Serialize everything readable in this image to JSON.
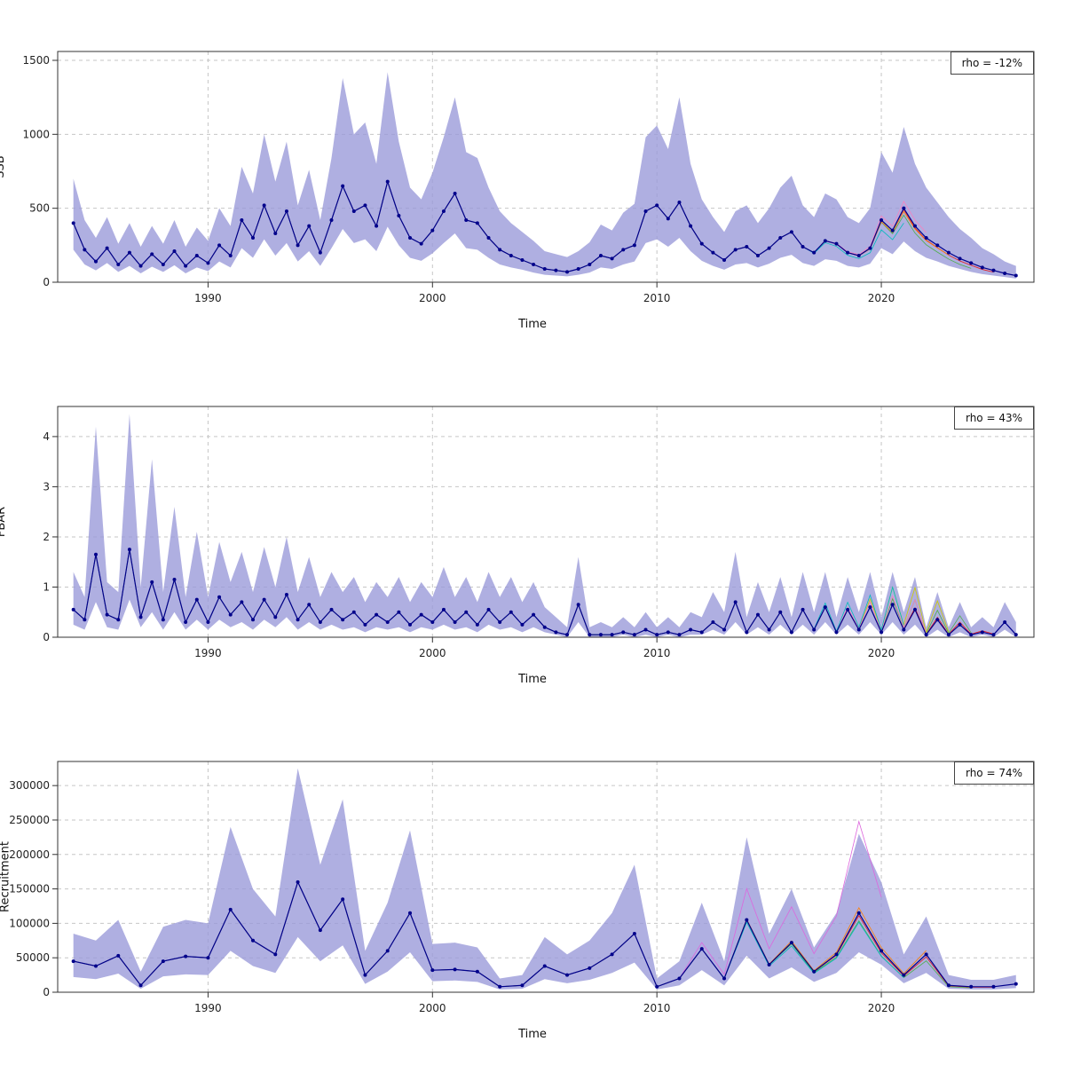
{
  "page": {
    "background": "#ffffff"
  },
  "chart_data": [
    {
      "type": "line",
      "title": "",
      "ylabel": "SSB",
      "xlabel": "Time",
      "annotation": "rho = -12%",
      "legend": "none",
      "grid": "dashed",
      "xlim": [
        1983.3,
        2026.8
      ],
      "ylim": [
        0,
        1560
      ],
      "xticks": [
        1990,
        2000,
        2010,
        2020
      ],
      "yticks": [
        0,
        500,
        1000,
        1500
      ],
      "x_start": 1984,
      "x_step": 0.5,
      "band_color": "#9898d8",
      "line_color": "#00008b",
      "retro": [
        {
          "color": "#e41a1c",
          "scale": 0.85,
          "end": 2025
        },
        {
          "color": "#4daf4a",
          "scale": 0.72,
          "end": 2024
        },
        {
          "color": "#ff7f00",
          "scale": 0.92,
          "end": 2023
        },
        {
          "color": "#f781bf",
          "scale": 1.12,
          "end": 2022
        },
        {
          "color": "#00bbbb",
          "scale": 0.8,
          "end": 2021
        }
      ],
      "median": [
        400,
        220,
        140,
        230,
        120,
        200,
        110,
        190,
        120,
        210,
        110,
        180,
        130,
        250,
        180,
        420,
        300,
        520,
        330,
        480,
        250,
        380,
        200,
        420,
        650,
        480,
        520,
        380,
        680,
        450,
        300,
        260,
        350,
        480,
        600,
        420,
        400,
        300,
        220,
        180,
        150,
        120,
        90,
        80,
        70,
        90,
        120,
        180,
        160,
        220,
        250,
        480,
        520,
        430,
        540,
        380,
        260,
        200,
        150,
        220,
        240,
        180,
        230,
        300,
        340,
        240,
        200,
        280,
        260,
        200,
        180,
        230,
        420,
        350,
        500,
        380,
        300,
        250,
        200,
        160,
        130,
        100,
        80,
        60,
        45
      ],
      "upper": [
        700,
        420,
        300,
        440,
        260,
        400,
        240,
        380,
        260,
        420,
        240,
        370,
        280,
        500,
        380,
        780,
        600,
        1000,
        680,
        950,
        520,
        760,
        420,
        840,
        1380,
        1000,
        1080,
        800,
        1420,
        950,
        640,
        560,
        740,
        980,
        1250,
        880,
        840,
        640,
        480,
        400,
        340,
        280,
        210,
        190,
        170,
        210,
        270,
        390,
        350,
        470,
        530,
        980,
        1060,
        900,
        1250,
        800,
        560,
        440,
        340,
        480,
        520,
        400,
        500,
        640,
        720,
        520,
        440,
        600,
        560,
        440,
        400,
        500,
        880,
        740,
        1050,
        800,
        640,
        540,
        440,
        360,
        300,
        230,
        190,
        140,
        110
      ],
      "lower": [
        220,
        120,
        80,
        130,
        70,
        110,
        60,
        105,
        70,
        115,
        60,
        100,
        75,
        140,
        100,
        230,
        165,
        290,
        180,
        265,
        140,
        210,
        110,
        230,
        360,
        265,
        290,
        210,
        375,
        250,
        165,
        145,
        195,
        265,
        330,
        230,
        220,
        165,
        120,
        100,
        85,
        65,
        50,
        45,
        40,
        50,
        65,
        100,
        90,
        120,
        140,
        265,
        290,
        240,
        300,
        210,
        145,
        110,
        85,
        120,
        130,
        100,
        125,
        165,
        185,
        130,
        110,
        155,
        145,
        110,
        100,
        125,
        230,
        190,
        275,
        210,
        165,
        140,
        110,
        90,
        70,
        55,
        45,
        35,
        25
      ]
    },
    {
      "type": "line",
      "title": "",
      "ylabel": "FBAR",
      "xlabel": "Time",
      "annotation": "rho = 43%",
      "legend": "none",
      "grid": "dashed",
      "xlim": [
        1983.3,
        2026.8
      ],
      "ylim": [
        0,
        4.6
      ],
      "xticks": [
        1990,
        2000,
        2010,
        2020
      ],
      "yticks": [
        0,
        1,
        2,
        3,
        4
      ],
      "x_start": 1984,
      "x_step": 0.5,
      "band_color": "#9898d8",
      "line_color": "#00008b",
      "retro": [
        {
          "color": "#e41a1c",
          "scale": 1.3,
          "end": 2025
        },
        {
          "color": "#4daf4a",
          "scale": 1.8,
          "end": 2024
        },
        {
          "color": "#cccc00",
          "scale": 2.2,
          "end": 2023
        },
        {
          "color": "#f781bf",
          "scale": 1.4,
          "end": 2022
        },
        {
          "color": "#00bbbb",
          "scale": 1.6,
          "end": 2021
        }
      ],
      "median": [
        0.55,
        0.35,
        1.65,
        0.45,
        0.35,
        1.75,
        0.4,
        1.1,
        0.35,
        1.15,
        0.3,
        0.75,
        0.3,
        0.8,
        0.45,
        0.7,
        0.35,
        0.75,
        0.4,
        0.85,
        0.35,
        0.65,
        0.3,
        0.55,
        0.35,
        0.5,
        0.25,
        0.45,
        0.3,
        0.5,
        0.25,
        0.45,
        0.3,
        0.55,
        0.3,
        0.5,
        0.25,
        0.55,
        0.3,
        0.5,
        0.25,
        0.45,
        0.2,
        0.1,
        0.05,
        0.65,
        0.05,
        0.05,
        0.05,
        0.1,
        0.05,
        0.15,
        0.05,
        0.1,
        0.05,
        0.15,
        0.1,
        0.3,
        0.15,
        0.7,
        0.1,
        0.45,
        0.15,
        0.5,
        0.1,
        0.55,
        0.15,
        0.6,
        0.1,
        0.55,
        0.15,
        0.6,
        0.1,
        0.65,
        0.15,
        0.55,
        0.05,
        0.35,
        0.05,
        0.25,
        0.05,
        0.1,
        0.05,
        0.3,
        0.05
      ],
      "upper": [
        1.3,
        0.8,
        4.2,
        1.1,
        0.9,
        4.45,
        1.0,
        3.55,
        0.9,
        2.6,
        0.8,
        2.1,
        0.8,
        1.9,
        1.1,
        1.7,
        0.9,
        1.8,
        1.0,
        2.0,
        0.9,
        1.6,
        0.8,
        1.3,
        0.9,
        1.2,
        0.7,
        1.1,
        0.8,
        1.2,
        0.7,
        1.1,
        0.8,
        1.4,
        0.8,
        1.2,
        0.7,
        1.3,
        0.8,
        1.2,
        0.7,
        1.1,
        0.6,
        0.4,
        0.2,
        1.6,
        0.2,
        0.3,
        0.2,
        0.4,
        0.2,
        0.5,
        0.2,
        0.4,
        0.2,
        0.5,
        0.4,
        0.9,
        0.5,
        1.7,
        0.4,
        1.1,
        0.5,
        1.2,
        0.4,
        1.3,
        0.5,
        1.3,
        0.4,
        1.2,
        0.5,
        1.3,
        0.4,
        1.3,
        0.5,
        1.2,
        0.2,
        0.9,
        0.2,
        0.7,
        0.2,
        0.4,
        0.2,
        0.7,
        0.3
      ],
      "lower": [
        0.25,
        0.15,
        0.7,
        0.2,
        0.15,
        0.75,
        0.2,
        0.5,
        0.15,
        0.5,
        0.15,
        0.35,
        0.15,
        0.35,
        0.2,
        0.3,
        0.15,
        0.35,
        0.2,
        0.4,
        0.15,
        0.3,
        0.15,
        0.25,
        0.15,
        0.2,
        0.1,
        0.2,
        0.15,
        0.2,
        0.1,
        0.2,
        0.15,
        0.25,
        0.15,
        0.2,
        0.1,
        0.25,
        0.15,
        0.2,
        0.1,
        0.2,
        0.1,
        0.05,
        0,
        0.3,
        0,
        0,
        0,
        0.05,
        0,
        0.05,
        0,
        0.05,
        0,
        0.05,
        0.05,
        0.15,
        0.05,
        0.3,
        0.05,
        0.2,
        0.05,
        0.25,
        0.05,
        0.25,
        0.05,
        0.3,
        0.05,
        0.25,
        0.05,
        0.3,
        0.05,
        0.3,
        0.05,
        0.25,
        0,
        0.15,
        0,
        0.1,
        0,
        0.05,
        0,
        0.15,
        0
      ]
    },
    {
      "type": "line",
      "title": "",
      "ylabel": "Recruitment",
      "xlabel": "Time",
      "annotation": "rho = 74%",
      "legend": "none",
      "grid": "dashed",
      "xlim": [
        1983.3,
        2026.8
      ],
      "ylim": [
        0,
        335000
      ],
      "xticks": [
        1990,
        2000,
        2010,
        2020
      ],
      "yticks": [
        0,
        50000,
        100000,
        150000,
        200000,
        250000,
        300000
      ],
      "x_start": 1984,
      "x_step": 1,
      "band_color": "#9898d8",
      "line_color": "#00008b",
      "retro": [
        {
          "color": "#e41a1c",
          "scale": 0.9,
          "end": 2025
        },
        {
          "color": "#4daf4a",
          "scale": 0.78,
          "end": 2024
        },
        {
          "color": "#ff7f00",
          "scale": 1.1,
          "end": 2022
        },
        {
          "color": "#dd66dd",
          "scale": 2.3,
          "end": 2020
        },
        {
          "color": "#00bbbb",
          "scale": 0.85,
          "end": 2021
        }
      ],
      "median": [
        45000,
        38000,
        53000,
        10000,
        45000,
        52000,
        50000,
        120000,
        75000,
        55000,
        160000,
        90000,
        135000,
        25000,
        60000,
        115000,
        32000,
        33000,
        30000,
        8000,
        10000,
        38000,
        25000,
        35000,
        55000,
        85000,
        8000,
        20000,
        63000,
        20000,
        105000,
        40000,
        72000,
        30000,
        55000,
        115000,
        60000,
        25000,
        55000,
        10000,
        8000,
        8000,
        12000
      ],
      "upper": [
        85000,
        75000,
        105000,
        30000,
        95000,
        105000,
        100000,
        240000,
        150000,
        110000,
        325000,
        185000,
        280000,
        60000,
        130000,
        235000,
        70000,
        72000,
        65000,
        20000,
        25000,
        80000,
        55000,
        75000,
        115000,
        185000,
        20000,
        45000,
        130000,
        45000,
        225000,
        85000,
        150000,
        65000,
        115000,
        230000,
        160000,
        55000,
        110000,
        25000,
        18000,
        18000,
        25000
      ],
      "lower": [
        22000,
        19000,
        27000,
        5000,
        23000,
        26000,
        25000,
        60000,
        38000,
        28000,
        80000,
        45000,
        68000,
        12000,
        30000,
        58000,
        16000,
        17000,
        15000,
        4000,
        5000,
        19000,
        13000,
        18000,
        28000,
        43000,
        4000,
        10000,
        32000,
        10000,
        53000,
        20000,
        36000,
        15000,
        28000,
        58000,
        40000,
        13000,
        28000,
        5000,
        4000,
        4000,
        6000
      ]
    }
  ]
}
